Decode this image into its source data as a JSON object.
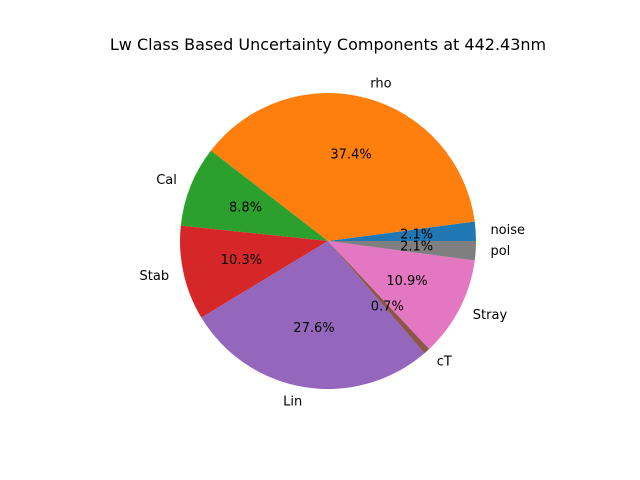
{
  "chart_data": {
    "type": "pie",
    "title": "Lw Class Based Uncertainty Components at 442.43nm",
    "labels": [
      "noise",
      "rho",
      "Cal",
      "Stab",
      "Lin",
      "cT",
      "Stray",
      "pol"
    ],
    "values": [
      2.1,
      37.4,
      8.8,
      10.3,
      27.6,
      0.7,
      10.9,
      2.1
    ],
    "pct_labels": [
      "2.1%",
      "37.4%",
      "8.8%",
      "10.3%",
      "27.6%",
      "0.7%",
      "10.9%",
      "2.1%"
    ],
    "colors": [
      "#1f77b4",
      "#ff7f0e",
      "#2ca02c",
      "#d62728",
      "#9467bd",
      "#8c564b",
      "#e377c2",
      "#7f7f7f"
    ],
    "start_angle_deg": 0,
    "direction": "counterclockwise"
  }
}
